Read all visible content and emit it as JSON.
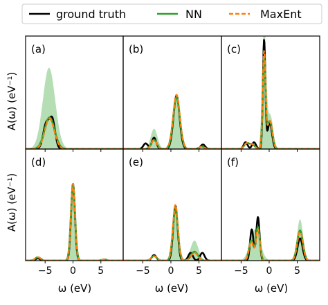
{
  "legend": {
    "items": [
      {
        "label": "ground truth",
        "color": "#000000",
        "style": "solid"
      },
      {
        "label": "NN",
        "color": "#2ca02c",
        "style": "solid"
      },
      {
        "label": "MaxEnt",
        "color": "#ff7f0e",
        "style": "dashed"
      }
    ]
  },
  "axes": {
    "ylabel_top": "A(ω)   (eV⁻¹)",
    "ylabel_bottom": "A(ω)   (eV⁻¹)",
    "xlabel": "ω   (eV)",
    "xticks": [
      "−5",
      "0",
      "5"
    ]
  },
  "chart_data": {
    "type": "line",
    "title": "",
    "xlabel": "ω (eV)",
    "ylabel": "A(ω) (eV⁻¹)",
    "xlim": [
      -8.5,
      9
    ],
    "ylim": [
      0,
      1
    ],
    "xticks": [
      -5,
      0,
      5
    ],
    "grid": false,
    "legend_position": "top",
    "panels": [
      {
        "label": "(a)",
        "series": [
          {
            "name": "ground truth",
            "peaks": [
              [
                -4.8,
                0.22,
                0.55
              ],
              [
                -3.7,
                0.25,
                0.5
              ]
            ]
          },
          {
            "name": "NN",
            "peaks": [
              [
                -4.2,
                0.28,
                0.9
              ]
            ],
            "band_peaks": [
              [
                -4.3,
                0.72,
                1.1
              ]
            ]
          },
          {
            "name": "MaxEnt",
            "peaks": [
              [
                -4.2,
                0.27,
                0.85
              ]
            ]
          }
        ]
      },
      {
        "label": "(b)",
        "series": [
          {
            "name": "ground truth",
            "peaks": [
              [
                -3.0,
                0.1,
                0.4
              ],
              [
                -4.5,
                0.05,
                0.4
              ],
              [
                1.0,
                0.47,
                0.55
              ],
              [
                5.7,
                0.04,
                0.4
              ]
            ]
          },
          {
            "name": "NN",
            "peaks": [
              [
                -3.0,
                0.08,
                0.5
              ],
              [
                1.0,
                0.46,
                0.6
              ],
              [
                5.5,
                0.02,
                0.5
              ]
            ],
            "band_peaks": [
              [
                -3.0,
                0.18,
                0.6
              ],
              [
                1.0,
                0.48,
                0.7
              ]
            ]
          },
          {
            "name": "MaxEnt",
            "peaks": [
              [
                -3.0,
                0.08,
                0.5
              ],
              [
                1.0,
                0.48,
                0.6
              ],
              [
                5.5,
                0.02,
                0.5
              ]
            ]
          }
        ]
      },
      {
        "label": "(c)",
        "series": [
          {
            "name": "ground truth",
            "peaks": [
              [
                -4.2,
                0.06,
                0.35
              ],
              [
                -2.7,
                0.06,
                0.35
              ],
              [
                -0.9,
                0.96,
                0.22
              ],
              [
                0.1,
                0.23,
                0.4
              ]
            ]
          },
          {
            "name": "NN",
            "peaks": [
              [
                -4.0,
                0.05,
                0.45
              ],
              [
                -3.0,
                0.04,
                0.45
              ],
              [
                -0.9,
                0.8,
                0.25
              ],
              [
                0.1,
                0.25,
                0.45
              ]
            ],
            "band_peaks": [
              [
                -0.9,
                1.1,
                0.35
              ],
              [
                0.2,
                0.3,
                0.5
              ]
            ]
          },
          {
            "name": "MaxEnt",
            "peaks": [
              [
                -4.0,
                0.05,
                0.45
              ],
              [
                -3.0,
                0.04,
                0.45
              ],
              [
                -0.9,
                0.85,
                0.25
              ],
              [
                0.1,
                0.25,
                0.45
              ]
            ]
          }
        ]
      },
      {
        "label": "(d)",
        "series": [
          {
            "name": "ground truth",
            "peaks": [
              [
                -6.3,
                0.02,
                0.4
              ],
              [
                0.0,
                0.69,
                0.35
              ],
              [
                5.6,
                0.01,
                0.4
              ]
            ]
          },
          {
            "name": "NN",
            "peaks": [
              [
                -6.3,
                0.03,
                0.5
              ],
              [
                0.0,
                0.68,
                0.38
              ],
              [
                5.6,
                0.01,
                0.5
              ]
            ],
            "band_peaks": [
              [
                0.0,
                0.7,
                0.45
              ]
            ]
          },
          {
            "name": "MaxEnt",
            "peaks": [
              [
                -6.3,
                0.03,
                0.5
              ],
              [
                0.0,
                0.69,
                0.36
              ],
              [
                5.6,
                0.01,
                0.5
              ]
            ]
          }
        ]
      },
      {
        "label": "(e)",
        "series": [
          {
            "name": "ground truth",
            "peaks": [
              [
                -3.0,
                0.05,
                0.4
              ],
              [
                0.8,
                0.49,
                0.4
              ],
              [
                3.5,
                0.07,
                0.4
              ],
              [
                5.6,
                0.07,
                0.4
              ]
            ]
          },
          {
            "name": "NN",
            "peaks": [
              [
                -3.0,
                0.04,
                0.5
              ],
              [
                0.8,
                0.46,
                0.45
              ],
              [
                4.2,
                0.08,
                0.6
              ]
            ],
            "band_peaks": [
              [
                0.8,
                0.48,
                0.55
              ],
              [
                4.2,
                0.18,
                0.7
              ]
            ]
          },
          {
            "name": "MaxEnt",
            "peaks": [
              [
                -3.0,
                0.04,
                0.5
              ],
              [
                0.8,
                0.5,
                0.45
              ],
              [
                4.2,
                0.07,
                0.6
              ]
            ]
          }
        ]
      },
      {
        "label": "(f)",
        "series": [
          {
            "name": "ground truth",
            "peaks": [
              [
                -3.1,
                0.28,
                0.3
              ],
              [
                -2.0,
                0.39,
                0.3
              ],
              [
                5.5,
                0.2,
                0.45
              ]
            ]
          },
          {
            "name": "NN",
            "peaks": [
              [
                -3.2,
                0.18,
                0.4
              ],
              [
                -2.0,
                0.3,
                0.35
              ],
              [
                5.5,
                0.27,
                0.5
              ]
            ],
            "band_peaks": [
              [
                -2.5,
                0.28,
                0.9
              ],
              [
                5.5,
                0.37,
                0.55
              ]
            ]
          },
          {
            "name": "MaxEnt",
            "peaks": [
              [
                -3.2,
                0.17,
                0.4
              ],
              [
                -2.0,
                0.28,
                0.35
              ],
              [
                5.5,
                0.26,
                0.5
              ]
            ]
          }
        ]
      }
    ]
  }
}
